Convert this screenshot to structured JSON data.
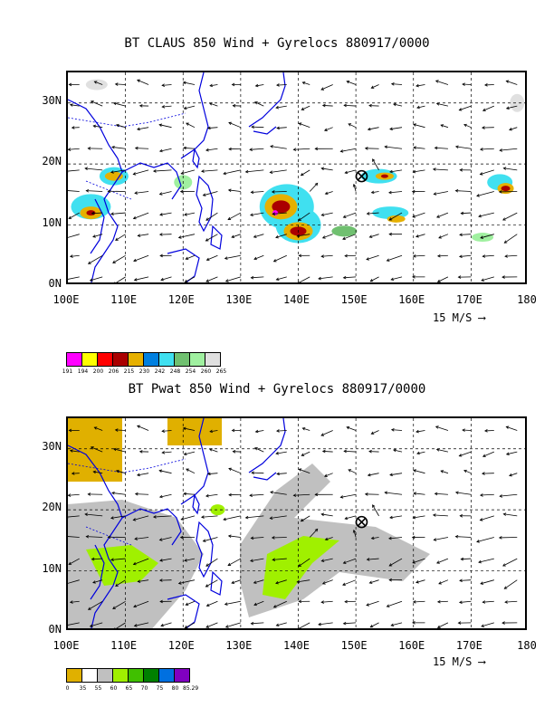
{
  "panels": [
    {
      "title": "BT CLAUS 850 Wind + Gyrelocs 880917/0000",
      "lat_labels": [
        "30N",
        "20N",
        "10N",
        "0N"
      ],
      "lon_labels": [
        "100E",
        "110E",
        "120E",
        "130E",
        "140E",
        "150E",
        "160E",
        "170E",
        "180"
      ],
      "scale_label": "15 M/S",
      "legend_colors": [
        "#ff00ff",
        "#ffff00",
        "#ff0000",
        "#aa0000",
        "#e6b000",
        "#0080e0",
        "#40e0f0",
        "#70c070",
        "#a0f0a0",
        "#e0e0e0"
      ],
      "legend_labels": [
        "191",
        "194",
        "200",
        "206",
        "215",
        "230",
        "242",
        "248",
        "254",
        "260",
        "265"
      ]
    },
    {
      "title": "BT Pwat 850 Wind + Gyrelocs 880917/0000",
      "lat_labels": [
        "30N",
        "20N",
        "10N",
        "0N"
      ],
      "lon_labels": [
        "100E",
        "110E",
        "120E",
        "130E",
        "140E",
        "150E",
        "160E",
        "170E",
        "180"
      ],
      "scale_label": "15 M/S",
      "legend_colors": [
        "#e0b000",
        "#ffffff",
        "#c0c0c0",
        "#a0f000",
        "#40c000",
        "#008000",
        "#0070e0",
        "#8000c0"
      ],
      "legend_labels": [
        "0",
        "35",
        "55",
        "60",
        "65",
        "70",
        "75",
        "80",
        "85.29"
      ]
    }
  ],
  "gyre_marker": {
    "lon": 151,
    "lat": 18,
    "icon": "circled-cross-icon"
  }
}
